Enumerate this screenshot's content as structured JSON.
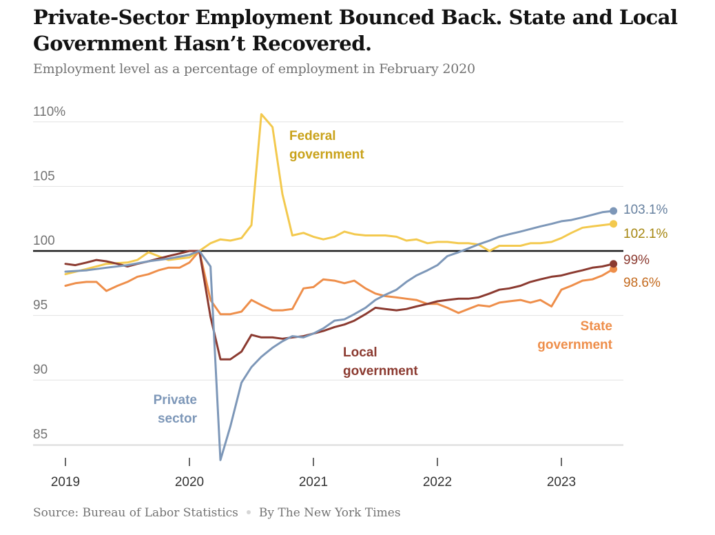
{
  "title": "Private-Sector Employment Bounced Back. State and Local Government Hasn’t Recovered.",
  "subtitle": "Employment level as a percentage of employment in February 2020",
  "footer": {
    "source": "Source: Bureau of Labor Statistics",
    "byline": "By The New York Times"
  },
  "chart_data": {
    "type": "line",
    "ylim": [
      84,
      111
    ],
    "y_ticks": [
      {
        "value": 110,
        "label": "110%"
      },
      {
        "value": 105,
        "label": "105"
      },
      {
        "value": 100,
        "label": "100"
      },
      {
        "value": 95,
        "label": "95"
      },
      {
        "value": 90,
        "label": "90"
      },
      {
        "value": 85,
        "label": "85"
      }
    ],
    "x_ticks": [
      {
        "value": 2019,
        "label": "2019"
      },
      {
        "value": 2020,
        "label": "2020"
      },
      {
        "value": 2021,
        "label": "2021"
      },
      {
        "value": 2022,
        "label": "2022"
      },
      {
        "value": 2023,
        "label": "2023"
      }
    ],
    "xlim": [
      2019,
      2023.5
    ],
    "reference_line": 100,
    "grid": true,
    "series": [
      {
        "name": "Private sector",
        "label_lines": [
          "Private",
          "sector"
        ],
        "color": "#7d97b8",
        "end_label": "103.1%",
        "x": [
          2019.0,
          2019.17,
          2019.33,
          2019.5,
          2019.67,
          2019.83,
          2020.0,
          2020.08,
          2020.17,
          2020.25,
          2020.33,
          2020.42,
          2020.5,
          2020.58,
          2020.67,
          2020.75,
          2020.83,
          2020.92,
          2021.0,
          2021.08,
          2021.17,
          2021.25,
          2021.33,
          2021.42,
          2021.5,
          2021.58,
          2021.67,
          2021.75,
          2021.83,
          2021.92,
          2022.0,
          2022.08,
          2022.17,
          2022.25,
          2022.33,
          2022.42,
          2022.5,
          2022.58,
          2022.67,
          2022.75,
          2022.83,
          2022.92,
          2023.0,
          2023.08,
          2023.17,
          2023.25,
          2023.33,
          2023.42
        ],
        "values": [
          98.4,
          98.5,
          98.7,
          98.9,
          99.2,
          99.4,
          99.7,
          100.0,
          98.8,
          83.8,
          86.4,
          89.8,
          91.0,
          91.8,
          92.5,
          93.0,
          93.4,
          93.3,
          93.6,
          94.0,
          94.6,
          94.7,
          95.1,
          95.6,
          96.2,
          96.6,
          97.0,
          97.6,
          98.1,
          98.5,
          98.9,
          99.6,
          99.9,
          100.2,
          100.5,
          100.8,
          101.1,
          101.3,
          101.5,
          101.7,
          101.9,
          102.1,
          102.3,
          102.4,
          102.6,
          102.8,
          103.0,
          103.1
        ]
      },
      {
        "name": "Federal government",
        "label_lines": [
          "Federal",
          "government"
        ],
        "color": "#f3c94e",
        "end_label": "102.1%",
        "x": [
          2019.0,
          2019.17,
          2019.33,
          2019.5,
          2019.58,
          2019.67,
          2019.83,
          2020.0,
          2020.08,
          2020.17,
          2020.25,
          2020.33,
          2020.42,
          2020.5,
          2020.58,
          2020.67,
          2020.75,
          2020.83,
          2020.92,
          2021.0,
          2021.08,
          2021.17,
          2021.25,
          2021.33,
          2021.42,
          2021.5,
          2021.58,
          2021.67,
          2021.75,
          2021.83,
          2021.92,
          2022.0,
          2022.08,
          2022.17,
          2022.25,
          2022.33,
          2022.42,
          2022.5,
          2022.58,
          2022.67,
          2022.75,
          2022.83,
          2022.92,
          2023.0,
          2023.08,
          2023.17,
          2023.25,
          2023.33,
          2023.42
        ],
        "values": [
          98.2,
          98.6,
          99.0,
          99.1,
          99.3,
          99.9,
          99.3,
          99.5,
          100.0,
          100.6,
          100.9,
          100.8,
          101.0,
          102.0,
          110.6,
          109.6,
          104.4,
          101.2,
          101.4,
          101.1,
          100.9,
          101.1,
          101.5,
          101.3,
          101.2,
          101.2,
          101.2,
          101.1,
          100.8,
          100.9,
          100.6,
          100.7,
          100.7,
          100.6,
          100.6,
          100.5,
          100.0,
          100.4,
          100.4,
          100.4,
          100.6,
          100.6,
          100.7,
          101.0,
          101.4,
          101.8,
          101.9,
          102.0,
          102.1
        ]
      },
      {
        "name": "Local government",
        "label_lines": [
          "Local",
          "government"
        ],
        "color": "#8b3a30",
        "end_label": "99%",
        "x": [
          2019.0,
          2019.08,
          2019.17,
          2019.25,
          2019.33,
          2019.42,
          2019.5,
          2019.58,
          2019.67,
          2019.75,
          2019.83,
          2019.92,
          2020.0,
          2020.08,
          2020.17,
          2020.25,
          2020.33,
          2020.42,
          2020.5,
          2020.58,
          2020.67,
          2020.75,
          2020.83,
          2020.92,
          2021.0,
          2021.08,
          2021.17,
          2021.25,
          2021.33,
          2021.42,
          2021.5,
          2021.58,
          2021.67,
          2021.75,
          2021.83,
          2021.92,
          2022.0,
          2022.08,
          2022.17,
          2022.25,
          2022.33,
          2022.42,
          2022.5,
          2022.58,
          2022.67,
          2022.75,
          2022.83,
          2022.92,
          2023.0,
          2023.08,
          2023.17,
          2023.25,
          2023.33,
          2023.42
        ],
        "values": [
          99.0,
          98.9,
          99.1,
          99.3,
          99.2,
          99.0,
          98.8,
          99.0,
          99.2,
          99.4,
          99.6,
          99.8,
          100.0,
          100.0,
          94.9,
          91.6,
          91.6,
          92.2,
          93.5,
          93.3,
          93.3,
          93.2,
          93.3,
          93.4,
          93.6,
          93.8,
          94.1,
          94.3,
          94.6,
          95.1,
          95.6,
          95.5,
          95.4,
          95.5,
          95.7,
          95.9,
          96.1,
          96.2,
          96.3,
          96.3,
          96.4,
          96.7,
          97.0,
          97.1,
          97.3,
          97.6,
          97.8,
          98.0,
          98.1,
          98.3,
          98.5,
          98.7,
          98.8,
          99.0
        ]
      },
      {
        "name": "State government",
        "label_lines": [
          "State",
          "government"
        ],
        "color": "#ee8e4a",
        "end_label": "98.6%",
        "x": [
          2019.0,
          2019.08,
          2019.17,
          2019.25,
          2019.33,
          2019.42,
          2019.5,
          2019.58,
          2019.67,
          2019.75,
          2019.83,
          2019.92,
          2020.0,
          2020.08,
          2020.17,
          2020.25,
          2020.33,
          2020.42,
          2020.5,
          2020.58,
          2020.67,
          2020.75,
          2020.83,
          2020.92,
          2021.0,
          2021.08,
          2021.17,
          2021.25,
          2021.33,
          2021.42,
          2021.5,
          2021.58,
          2021.67,
          2021.75,
          2021.83,
          2021.92,
          2022.0,
          2022.08,
          2022.17,
          2022.25,
          2022.33,
          2022.42,
          2022.5,
          2022.58,
          2022.67,
          2022.75,
          2022.83,
          2022.92,
          2023.0,
          2023.08,
          2023.17,
          2023.25,
          2023.33,
          2023.42
        ],
        "values": [
          97.3,
          97.5,
          97.6,
          97.6,
          96.9,
          97.3,
          97.6,
          98.0,
          98.2,
          98.5,
          98.7,
          98.7,
          99.1,
          100.0,
          96.2,
          95.1,
          95.1,
          95.3,
          96.2,
          95.8,
          95.4,
          95.4,
          95.5,
          97.1,
          97.2,
          97.8,
          97.7,
          97.5,
          97.7,
          97.1,
          96.7,
          96.5,
          96.4,
          96.3,
          96.2,
          95.9,
          95.9,
          95.6,
          95.2,
          95.5,
          95.8,
          95.7,
          96.0,
          96.1,
          96.2,
          96.0,
          96.2,
          95.7,
          97.0,
          97.3,
          97.7,
          97.8,
          98.1,
          98.6
        ]
      }
    ]
  }
}
